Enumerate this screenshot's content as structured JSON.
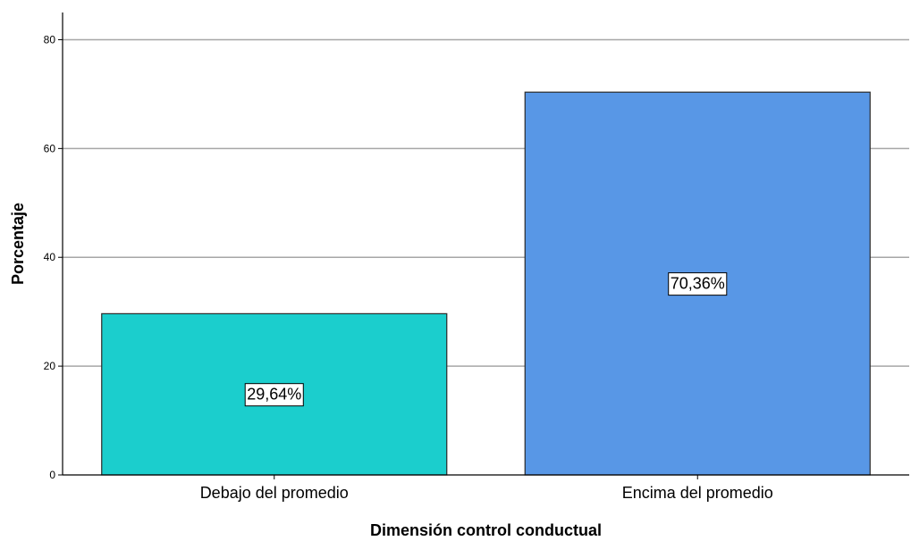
{
  "chart_data": {
    "type": "bar",
    "categories": [
      "Debajo del promedio",
      "Encima del promedio"
    ],
    "values": [
      29.64,
      70.36
    ],
    "data_labels": [
      "29,64%",
      "70,36%"
    ],
    "xlabel": "Dimensión control conductual",
    "ylabel": "Porcentaje",
    "ylim": [
      0,
      85
    ],
    "yticks": [
      0,
      20,
      40,
      60,
      80
    ],
    "ytick_labels": [
      "0",
      "20",
      "40",
      "60",
      "80"
    ],
    "grid": true,
    "colors": {
      "bars": [
        "#1bcecd",
        "#5897e6"
      ],
      "bar_stroke": "#2a2a2a",
      "grid": "#a6a6a6",
      "axis": "#000000",
      "label_box_fill": "#ffffff",
      "label_box_stroke": "#000000"
    }
  }
}
